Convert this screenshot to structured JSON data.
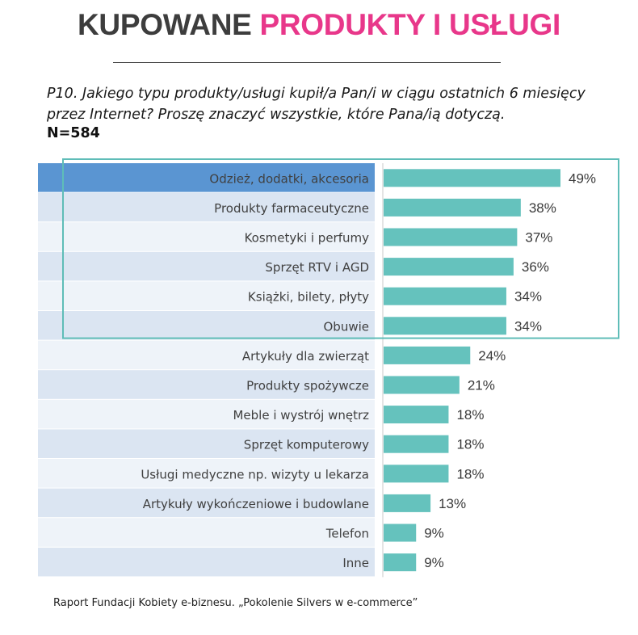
{
  "header": {
    "title_part1": "KUPOWANE",
    "title_part2": "PRODUKTY I USŁUGI"
  },
  "question": {
    "text": "P10. Jakiego typu produkty/usługi kupił/a Pan/i w ciągu ostatnich 6 miesięcy przez Internet? Proszę znaczyć wszystkie, które Pana/ią dotyczą.",
    "sample": "N=584"
  },
  "chart_data": {
    "type": "bar",
    "orientation": "horizontal",
    "categories": [
      "Odzież, dodatki, akcesoria",
      "Produkty farmaceutyczne",
      "Kosmetyki i perfumy",
      "Sprzęt RTV i AGD",
      "Książki, bilety, płyty",
      "Obuwie",
      "Artykuły dla zwierząt",
      "Produkty spożywcze",
      "Meble i wystrój wnętrz",
      "Sprzęt komputerowy",
      "Usługi medyczne np. wizyty u lekarza",
      "Artykuły wykończeniowe i budowlane",
      "Telefon",
      "Inne"
    ],
    "values": [
      49,
      38,
      37,
      36,
      34,
      34,
      24,
      21,
      18,
      18,
      18,
      13,
      9,
      9
    ],
    "labels": [
      "49%",
      "38%",
      "37%",
      "36%",
      "34%",
      "34%",
      "24%",
      "21%",
      "18%",
      "18%",
      "18%",
      "13%",
      "9%",
      "9%"
    ],
    "unit": "%",
    "xlim": [
      0,
      49
    ],
    "highlighted_top_n": 6,
    "colors": {
      "bar": "#65c2bd",
      "row_first": "#5a95d2",
      "row_light": "#dbe5f2",
      "row_lighter": "#eef3f9",
      "highlight_box": "#5fbdb8"
    }
  },
  "footer": {
    "source": "Raport Fundacji Kobiety e-biznesu. „Pokolenie Silvers w e-commerce”"
  }
}
